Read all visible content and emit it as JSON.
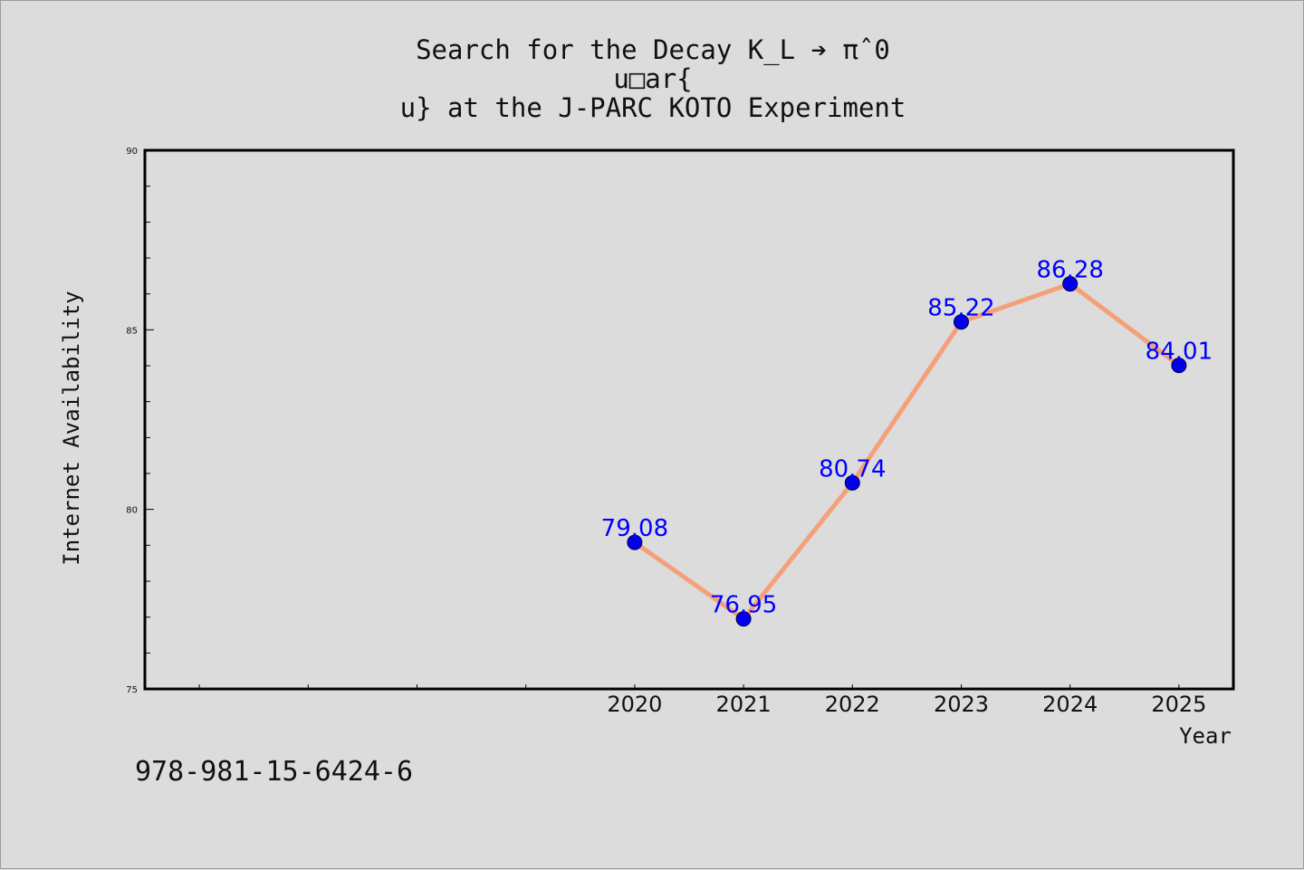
{
  "title_lines": [
    "Search for the Decay K_L ➔ πˆ0",
    "u□ar{",
    "u} at the J-PARC KOTO Experiment"
  ],
  "isbn": "978-981-15-6424-6",
  "chart_data": {
    "type": "line",
    "title": "Search for the Decay K_L ➔ πˆ0 u□ar{ u} at the J-PARC KOTO Experiment",
    "xlabel": "Year",
    "ylabel": "Internet Availability",
    "x": [
      2020,
      2021,
      2022,
      2023,
      2024,
      2025
    ],
    "values": [
      79.08,
      76.95,
      80.74,
      85.22,
      86.28,
      84.01
    ],
    "data_labels": [
      "79.08",
      "76.95",
      "80.74",
      "85.22",
      "86.28",
      "84.01"
    ],
    "xlim": [
      2015.5,
      2025.5
    ],
    "ylim": [
      75,
      90
    ],
    "y_tick_labels": [
      "90",
      "85",
      "80",
      "75"
    ],
    "x_tick_labels": [
      "2020",
      "2021",
      "2022",
      "2023",
      "2024",
      "2025"
    ],
    "grid": false,
    "colors": {
      "line": "#f4a07a",
      "marker": "#0000ee",
      "label": "#0000ff",
      "frame": "#000000",
      "background": "#dcdcdc",
      "plot_bg": "#ffffff"
    }
  }
}
